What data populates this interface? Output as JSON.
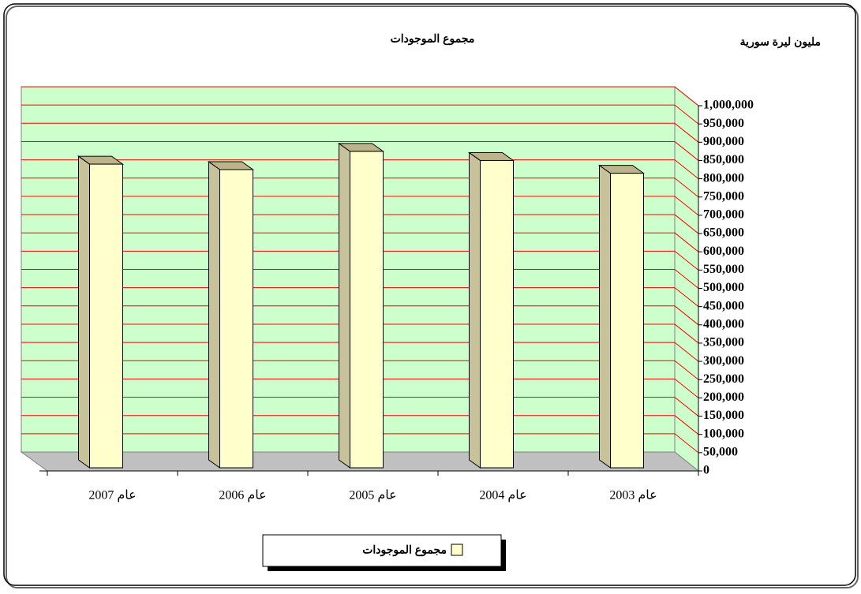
{
  "chart_data": {
    "type": "bar3d",
    "title": "مجموع الموجودات",
    "y_axis_label": "مليون ليرة سورية",
    "categories": [
      "عام 2007",
      "عام 2006",
      "عام 2005",
      "عام 2004",
      "عام 2003"
    ],
    "series": [
      {
        "name": "مجموع الموجودات",
        "color": "#ffffcc",
        "values": [
          840000,
          825000,
          875000,
          850000,
          815000
        ]
      }
    ],
    "ylim": [
      0,
      1000000
    ],
    "yticks": [
      0,
      {
        "value": 50000,
        "label": "50,000"
      },
      {
        "value": 100000,
        "label": "100,000"
      },
      {
        "value": 150000,
        "label": "150,000"
      },
      {
        "value": 200000,
        "label": "200,000"
      },
      {
        "value": 250000,
        "label": "250,000"
      },
      {
        "value": 300000,
        "label": "300,000"
      },
      {
        "value": 350000,
        "label": "350,000"
      },
      {
        "value": 400000,
        "label": "400,000"
      },
      {
        "value": 450000,
        "label": "450,000"
      },
      {
        "value": 500000,
        "label": "500,000"
      },
      {
        "value": 550000,
        "label": "550,000"
      },
      {
        "value": 600000,
        "label": "600,000"
      },
      {
        "value": 650000,
        "label": "650,000"
      },
      {
        "value": 700000,
        "label": "700,000"
      },
      {
        "value": 750000,
        "label": "750,000"
      },
      {
        "value": 800000,
        "label": "800,000"
      },
      {
        "value": 850000,
        "label": "850,000"
      },
      {
        "value": 900000,
        "label": "900,000"
      },
      {
        "value": 950000,
        "label": "950,000"
      },
      {
        "value": 1000000,
        "label": "1,000,000"
      }
    ],
    "grid": true,
    "grid_color": "#ff0000",
    "wall_color": "#ccffcc",
    "floor_color": "#c0c0c0",
    "legend": "bottom"
  }
}
